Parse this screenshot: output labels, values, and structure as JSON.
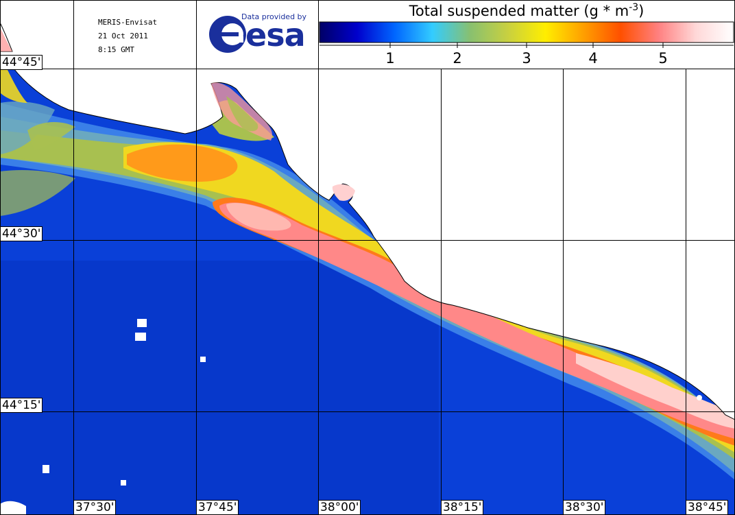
{
  "header": {
    "sensor": "MERIS-Envisat",
    "date": "21 Oct 2011",
    "time": "8:15 GMT",
    "provider_note": "Data provided by",
    "provider_logo_text": "esa",
    "provider_color": "#1a2f9c"
  },
  "colorbar": {
    "title": "Total suspended matter (g * m-3)",
    "title_prefix": "Total suspended matter (g ",
    "title_star": "*",
    "title_m": " m",
    "title_exp": "-3",
    "title_suffix": ")",
    "ticks": [
      "1",
      "2",
      "3",
      "4",
      "5"
    ],
    "colors": [
      "#000066",
      "#0000cc",
      "#0066ff",
      "#33ccff",
      "#88c070",
      "#c8d040",
      "#ffee00",
      "#ffa000",
      "#ff5000",
      "#ff8080",
      "#ffd8d8",
      "#ffffff"
    ]
  },
  "map": {
    "lat_labels": [
      "44°45'",
      "44°30'",
      "44°15'"
    ],
    "lon_labels": [
      "37°30'",
      "37°45'",
      "38°00'",
      "38°15'",
      "38°30'",
      "38°45'"
    ],
    "land_color": "#ffffff",
    "water_color": "#0a3cd8"
  }
}
